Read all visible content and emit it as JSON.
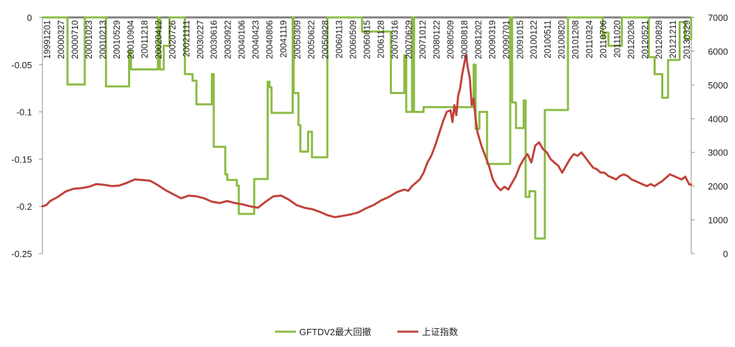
{
  "chart_data": {
    "type": "line",
    "title": "",
    "xlabel": "",
    "ylabel": "",
    "y_left": {
      "range": [
        -0.25,
        0
      ],
      "ticks": [
        "0",
        "-0.05",
        "-0.1",
        "-0.15",
        "-0.2",
        "-0.25"
      ]
    },
    "y_right": {
      "range": [
        0,
        7000
      ],
      "ticks": [
        "7000",
        "6000",
        "5000",
        "4000",
        "3000",
        "2000",
        "1000",
        "0"
      ]
    },
    "x_tick_labels": [
      "19991201",
      "20000327",
      "20000710",
      "20001023",
      "20010213",
      "20010529",
      "20010904",
      "20011218",
      "20020412",
      "20020726",
      "20021111",
      "20030227",
      "20030616",
      "20030922",
      "20040106",
      "20040423",
      "20040806",
      "20041119",
      "20050309",
      "20050622",
      "20050928",
      "20060113",
      "20060509",
      "20060815",
      "20061128",
      "20070316",
      "20070629",
      "20071012",
      "20080122",
      "20080509",
      "20080818",
      "20081202",
      "20090319",
      "20090701",
      "20091015",
      "20100122",
      "20100511",
      "20100820",
      "20101208",
      "20110324",
      "20110706",
      "20111020",
      "20120206",
      "20120521",
      "20120828",
      "20121211",
      "20130329"
    ],
    "legend_position": "bottom",
    "colors": {
      "drawdown": "#8cbb45",
      "index": "#c0433a",
      "axis": "#8c8c8c",
      "top_band": "#808080"
    },
    "series": [
      {
        "name": "GFTDV2最大回撤",
        "axis": "left",
        "step": true,
        "points": [
          [
            0,
            0
          ],
          [
            13,
            0
          ],
          [
            13,
            -0.071
          ],
          [
            22,
            -0.071
          ],
          [
            22,
            0
          ],
          [
            33,
            0
          ],
          [
            33,
            -0.073
          ],
          [
            45,
            -0.073
          ],
          [
            45,
            -0.035
          ],
          [
            46,
            -0.035
          ],
          [
            46,
            -0.055
          ],
          [
            60,
            -0.055
          ],
          [
            60,
            0
          ],
          [
            61,
            0
          ],
          [
            61,
            -0.055
          ],
          [
            63,
            -0.055
          ],
          [
            63,
            -0.03
          ],
          [
            66,
            -0.03
          ],
          [
            66,
            0
          ],
          [
            74,
            0
          ],
          [
            74,
            -0.06
          ],
          [
            78,
            -0.06
          ],
          [
            78,
            -0.067
          ],
          [
            80,
            -0.067
          ],
          [
            80,
            -0.092
          ],
          [
            88,
            -0.092
          ],
          [
            88,
            -0.06
          ],
          [
            89,
            -0.06
          ],
          [
            89,
            -0.137
          ],
          [
            95,
            -0.137
          ],
          [
            95,
            -0.166
          ],
          [
            96,
            -0.166
          ],
          [
            96,
            -0.172
          ],
          [
            101,
            -0.172
          ],
          [
            101,
            -0.178
          ],
          [
            102,
            -0.178
          ],
          [
            102,
            -0.208
          ],
          [
            110,
            -0.208
          ],
          [
            110,
            -0.171
          ],
          [
            117,
            -0.171
          ],
          [
            117,
            -0.068
          ],
          [
            118,
            -0.068
          ],
          [
            118,
            -0.074
          ],
          [
            119,
            -0.074
          ],
          [
            119,
            -0.101
          ],
          [
            130,
            -0.101
          ],
          [
            130,
            0
          ],
          [
            130.5,
            0
          ],
          [
            130.5,
            -0.08
          ],
          [
            131,
            -0.08
          ],
          [
            131,
            -0.08
          ],
          [
            133,
            -0.08
          ],
          [
            133,
            -0.114
          ],
          [
            134,
            -0.114
          ],
          [
            134,
            -0.142
          ],
          [
            138,
            -0.142
          ],
          [
            138,
            -0.121
          ],
          [
            140,
            -0.121
          ],
          [
            140,
            -0.148
          ],
          [
            148,
            -0.148
          ],
          [
            148,
            0
          ],
          [
            166,
            0
          ],
          [
            166,
            -0.015
          ],
          [
            181,
            -0.015
          ],
          [
            181,
            -0.08
          ],
          [
            188,
            -0.08
          ],
          [
            188,
            -0.04
          ],
          [
            189,
            -0.04
          ],
          [
            189,
            -0.1
          ],
          [
            192,
            -0.1
          ],
          [
            192,
            0
          ],
          [
            193,
            0
          ],
          [
            193,
            -0.1
          ],
          [
            198,
            -0.1
          ],
          [
            198,
            -0.095
          ],
          [
            224,
            -0.095
          ],
          [
            224,
            -0.05
          ],
          [
            225,
            -0.05
          ],
          [
            225,
            -0.118
          ],
          [
            227,
            -0.118
          ],
          [
            227,
            -0.1
          ],
          [
            231,
            -0.1
          ],
          [
            231,
            -0.155
          ],
          [
            243,
            -0.155
          ],
          [
            243,
            0
          ],
          [
            244,
            0
          ],
          [
            244,
            -0.09
          ],
          [
            246,
            -0.09
          ],
          [
            246,
            -0.117
          ],
          [
            250,
            -0.117
          ],
          [
            250,
            -0.088
          ],
          [
            251,
            -0.088
          ],
          [
            251,
            -0.19
          ],
          [
            253,
            -0.19
          ],
          [
            253,
            -0.184
          ],
          [
            256,
            -0.184
          ],
          [
            256,
            -0.234
          ],
          [
            261,
            -0.234
          ],
          [
            261,
            -0.098
          ],
          [
            273,
            -0.098
          ],
          [
            273,
            0
          ],
          [
            291,
            0
          ],
          [
            291,
            -0.022
          ],
          [
            292,
            -0.022
          ],
          [
            292,
            -0.016
          ],
          [
            294,
            -0.016
          ],
          [
            294,
            -0.03
          ],
          [
            301,
            -0.03
          ],
          [
            301,
            0
          ],
          [
            315,
            0
          ],
          [
            315,
            -0.042
          ],
          [
            318,
            -0.042
          ],
          [
            318,
            -0.06
          ],
          [
            322,
            -0.06
          ],
          [
            322,
            -0.085
          ],
          [
            325,
            -0.085
          ],
          [
            325,
            -0.045
          ],
          [
            331,
            -0.045
          ],
          [
            331,
            -0.005
          ],
          [
            334,
            -0.005
          ],
          [
            334,
            -0.023
          ],
          [
            337,
            -0.023
          ],
          [
            337,
            0
          ]
        ]
      },
      {
        "name": "上证指数",
        "axis": "right",
        "step": false,
        "points": [
          [
            0,
            1400
          ],
          [
            2,
            1440
          ],
          [
            4,
            1560
          ],
          [
            8,
            1680
          ],
          [
            12,
            1840
          ],
          [
            16,
            1920
          ],
          [
            20,
            1940
          ],
          [
            24,
            1980
          ],
          [
            28,
            2060
          ],
          [
            32,
            2040
          ],
          [
            36,
            2000
          ],
          [
            40,
            2020
          ],
          [
            44,
            2100
          ],
          [
            48,
            2200
          ],
          [
            52,
            2180
          ],
          [
            56,
            2160
          ],
          [
            60,
            2030
          ],
          [
            64,
            1880
          ],
          [
            68,
            1760
          ],
          [
            72,
            1640
          ],
          [
            76,
            1720
          ],
          [
            80,
            1700
          ],
          [
            84,
            1640
          ],
          [
            88,
            1540
          ],
          [
            92,
            1500
          ],
          [
            96,
            1560
          ],
          [
            100,
            1500
          ],
          [
            104,
            1460
          ],
          [
            108,
            1400
          ],
          [
            112,
            1360
          ],
          [
            116,
            1540
          ],
          [
            120,
            1700
          ],
          [
            124,
            1720
          ],
          [
            128,
            1600
          ],
          [
            132,
            1440
          ],
          [
            136,
            1360
          ],
          [
            140,
            1320
          ],
          [
            144,
            1240
          ],
          [
            148,
            1140
          ],
          [
            152,
            1080
          ],
          [
            156,
            1120
          ],
          [
            160,
            1160
          ],
          [
            164,
            1220
          ],
          [
            168,
            1340
          ],
          [
            172,
            1440
          ],
          [
            176,
            1580
          ],
          [
            180,
            1680
          ],
          [
            184,
            1820
          ],
          [
            188,
            1900
          ],
          [
            190,
            1860
          ],
          [
            192,
            2000
          ],
          [
            194,
            2100
          ],
          [
            196,
            2200
          ],
          [
            198,
            2400
          ],
          [
            200,
            2700
          ],
          [
            202,
            2900
          ],
          [
            204,
            3200
          ],
          [
            206,
            3550
          ],
          [
            208,
            3900
          ],
          [
            210,
            4200
          ],
          [
            212,
            4250
          ],
          [
            213,
            3900
          ],
          [
            214,
            4400
          ],
          [
            215,
            4100
          ],
          [
            216,
            4700
          ],
          [
            217,
            4900
          ],
          [
            218,
            5300
          ],
          [
            219,
            5600
          ],
          [
            220,
            5900
          ],
          [
            221,
            5500
          ],
          [
            222,
            5200
          ],
          [
            223,
            4400
          ],
          [
            224,
            4600
          ],
          [
            225,
            4000
          ],
          [
            226,
            3600
          ],
          [
            228,
            3200
          ],
          [
            230,
            2900
          ],
          [
            232,
            2600
          ],
          [
            234,
            2200
          ],
          [
            236,
            2000
          ],
          [
            238,
            1880
          ],
          [
            240,
            1980
          ],
          [
            242,
            1900
          ],
          [
            244,
            2100
          ],
          [
            246,
            2300
          ],
          [
            248,
            2600
          ],
          [
            250,
            2800
          ],
          [
            252,
            2950
          ],
          [
            254,
            2700
          ],
          [
            256,
            3200
          ],
          [
            258,
            3300
          ],
          [
            260,
            3100
          ],
          [
            262,
            3000
          ],
          [
            264,
            2800
          ],
          [
            266,
            2700
          ],
          [
            268,
            2600
          ],
          [
            270,
            2400
          ],
          [
            272,
            2600
          ],
          [
            274,
            2800
          ],
          [
            276,
            2950
          ],
          [
            278,
            2900
          ],
          [
            280,
            3000
          ],
          [
            282,
            2850
          ],
          [
            284,
            2700
          ],
          [
            286,
            2550
          ],
          [
            288,
            2500
          ],
          [
            290,
            2400
          ],
          [
            292,
            2400
          ],
          [
            294,
            2300
          ],
          [
            296,
            2250
          ],
          [
            298,
            2200
          ],
          [
            300,
            2300
          ],
          [
            302,
            2350
          ],
          [
            304,
            2300
          ],
          [
            306,
            2200
          ],
          [
            308,
            2150
          ],
          [
            310,
            2100
          ],
          [
            312,
            2050
          ],
          [
            314,
            2000
          ],
          [
            316,
            2060
          ],
          [
            318,
            2000
          ],
          [
            320,
            2080
          ],
          [
            322,
            2150
          ],
          [
            324,
            2250
          ],
          [
            326,
            2350
          ],
          [
            328,
            2300
          ],
          [
            330,
            2250
          ],
          [
            332,
            2200
          ],
          [
            334,
            2280
          ],
          [
            336,
            2050
          ],
          [
            337,
            2050
          ]
        ]
      }
    ]
  }
}
